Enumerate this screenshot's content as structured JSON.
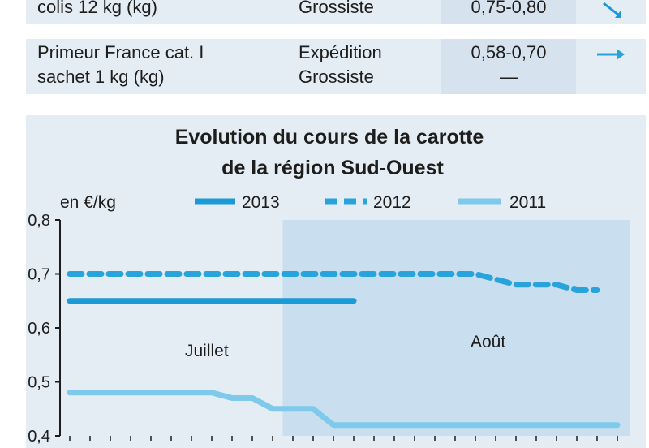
{
  "table": {
    "rows": [
      {
        "product": [
          "colis 12 kg (kg)"
        ],
        "stage": [
          "Grossiste"
        ],
        "price": [
          "0,75-0,80"
        ],
        "trend": "down-right-arrow-icon"
      },
      {
        "product": [
          "Primeur France cat. I",
          "sachet 1 kg (kg)"
        ],
        "stage": [
          "Expédition",
          "Grossiste"
        ],
        "price": [
          "0,58-0,70",
          "—"
        ],
        "trend": "right-arrow-icon",
        "trend2": "dash-icon"
      }
    ]
  },
  "colors": {
    "panel": "#e4ecf4",
    "shade": "#c9deef",
    "s2013": "#1a9ad6",
    "s2012": "#29a3dc",
    "s2011": "#7fcaec",
    "axis": "#1d1d1b"
  },
  "chart_data": {
    "type": "line",
    "title": [
      "Evolution du cours de la carotte",
      "de la région Sud-Ouest"
    ],
    "ylabel": "en €/kg",
    "ylim": [
      0.4,
      0.8
    ],
    "yticks": [
      "0,4",
      "0,5",
      "0,6",
      "0,7",
      "0,8"
    ],
    "annotations": [
      "Juillet",
      "Août"
    ],
    "x_count": 28,
    "x_split": 11,
    "series": [
      {
        "name": "2013",
        "style": "solid",
        "values": [
          0.65,
          0.65,
          0.65,
          0.65,
          0.65,
          0.65,
          0.65,
          0.65,
          0.65,
          0.65,
          0.65,
          0.65,
          0.65,
          0.65,
          0.65
        ]
      },
      {
        "name": "2012",
        "style": "dashed",
        "values": [
          0.7,
          0.7,
          0.7,
          0.7,
          0.7,
          0.7,
          0.7,
          0.7,
          0.7,
          0.7,
          0.7,
          0.7,
          0.7,
          0.7,
          0.7,
          0.7,
          0.7,
          0.7,
          0.7,
          0.7,
          0.7,
          0.69,
          0.68,
          0.68,
          0.68,
          0.67,
          0.67
        ]
      },
      {
        "name": "2011",
        "style": "solid-light",
        "values": [
          0.48,
          0.48,
          0.48,
          0.48,
          0.48,
          0.48,
          0.48,
          0.48,
          0.47,
          0.47,
          0.45,
          0.45,
          0.45,
          0.42,
          0.42,
          0.42,
          0.42,
          0.42,
          0.42,
          0.42,
          0.42,
          0.42,
          0.42,
          0.42,
          0.42,
          0.42,
          0.42,
          0.42
        ]
      }
    ]
  }
}
